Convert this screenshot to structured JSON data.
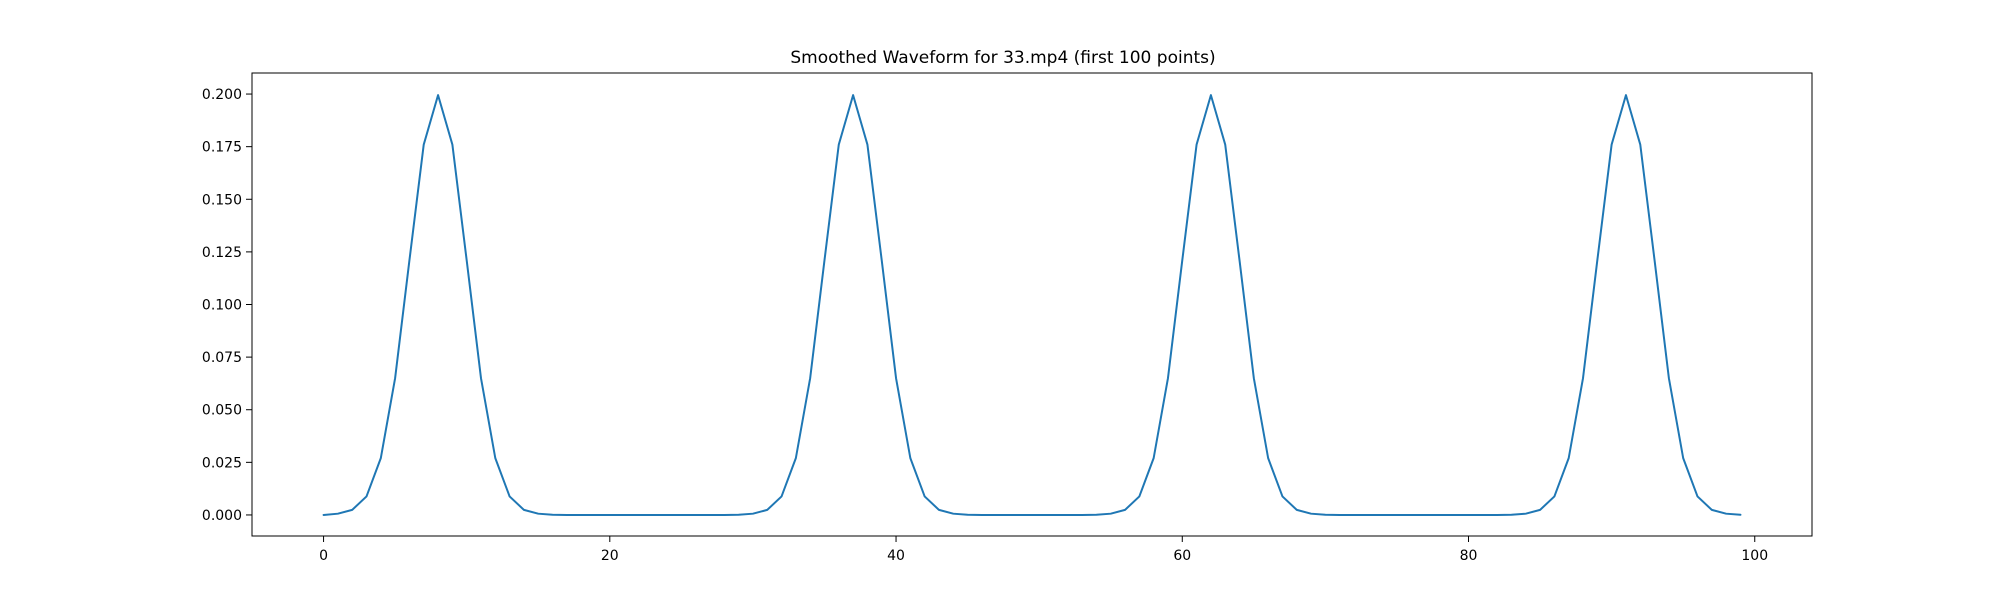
{
  "chart_data": {
    "type": "line",
    "title": "Smoothed Waveform for 33.mp4 (first 100 points)",
    "xlabel": "",
    "ylabel": "",
    "xlim": [
      -5,
      104
    ],
    "ylim": [
      -0.01,
      0.21
    ],
    "xticks": [
      0,
      20,
      40,
      60,
      80,
      100
    ],
    "yticks": [
      0.0,
      0.025,
      0.05,
      0.075,
      0.1,
      0.125,
      0.15,
      0.175,
      0.2
    ],
    "xtick_labels": [
      "0",
      "20",
      "40",
      "60",
      "80",
      "100"
    ],
    "ytick_labels": [
      "0.000",
      "0.025",
      "0.050",
      "0.075",
      "0.100",
      "0.125",
      "0.150",
      "0.175",
      "0.200"
    ],
    "grid": false,
    "line_color": "#1f77b4",
    "series": [
      {
        "x": [
          0,
          1,
          2,
          3,
          4,
          5,
          6,
          7,
          8,
          9,
          10,
          11,
          12,
          13,
          14,
          15,
          16,
          17,
          18,
          19,
          20,
          21,
          22,
          23,
          24,
          25,
          26,
          27,
          28,
          29,
          30,
          31,
          32,
          33,
          34,
          35,
          36,
          37,
          38,
          39,
          40,
          41,
          42,
          43,
          44,
          45,
          46,
          47,
          48,
          49,
          50,
          51,
          52,
          53,
          54,
          55,
          56,
          57,
          58,
          59,
          60,
          61,
          62,
          63,
          64,
          65,
          66,
          67,
          68,
          69,
          70,
          71,
          72,
          73,
          74,
          75,
          76,
          77,
          78,
          79,
          80,
          81,
          82,
          83,
          84,
          85,
          86,
          87,
          88,
          89,
          90,
          91,
          92,
          93,
          94,
          95,
          96,
          97,
          98,
          99
        ],
        "values": [
          0.0,
          0.0006,
          0.0024,
          0.0088,
          0.027,
          0.065,
          0.121,
          0.176,
          0.1995,
          0.176,
          0.121,
          0.065,
          0.027,
          0.0088,
          0.0024,
          0.0006,
          0.0001,
          0.0,
          0.0,
          0.0,
          0.0,
          0.0,
          0.0,
          0.0,
          0.0,
          0.0,
          0.0,
          0.0,
          0.0,
          0.0001,
          0.0006,
          0.0024,
          0.0088,
          0.027,
          0.065,
          0.121,
          0.176,
          0.1995,
          0.176,
          0.121,
          0.065,
          0.027,
          0.0088,
          0.0024,
          0.0006,
          0.0001,
          0.0,
          0.0,
          0.0,
          0.0,
          0.0,
          0.0,
          0.0,
          0.0,
          0.0001,
          0.0006,
          0.0024,
          0.0088,
          0.027,
          0.065,
          0.121,
          0.176,
          0.1995,
          0.176,
          0.121,
          0.065,
          0.027,
          0.0088,
          0.0024,
          0.0006,
          0.0001,
          0.0,
          0.0,
          0.0,
          0.0,
          0.0,
          0.0,
          0.0,
          0.0,
          0.0,
          0.0,
          0.0,
          0.0,
          0.0001,
          0.0006,
          0.0024,
          0.0088,
          0.027,
          0.065,
          0.121,
          0.176,
          0.1995,
          0.176,
          0.121,
          0.065,
          0.027,
          0.0088,
          0.0024,
          0.0006,
          0.0001
        ]
      }
    ]
  }
}
